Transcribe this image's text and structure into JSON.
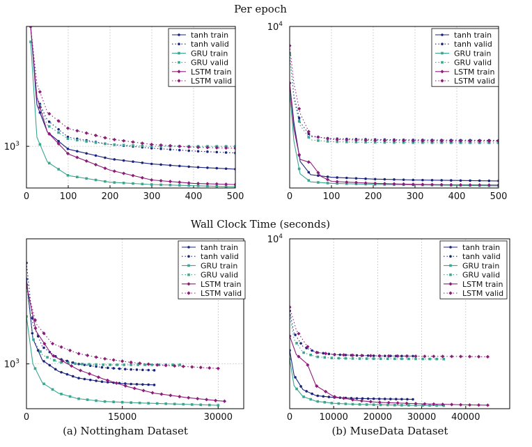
{
  "headings": {
    "top": "Per epoch",
    "middle": "Wall Clock Time (seconds)",
    "caption_a": "(a) Nottingham Dataset",
    "caption_b": "(b) MuseData Dataset"
  },
  "colors": {
    "tanh": "#1a237e",
    "gru": "#3aa68f",
    "lstm": "#8e1b7a"
  },
  "legend": [
    {
      "name": "tanh train",
      "family": "tanh",
      "style": "solid"
    },
    {
      "name": "tanh valid",
      "family": "tanh",
      "style": "dotted"
    },
    {
      "name": "GRU train",
      "family": "gru",
      "style": "solid"
    },
    {
      "name": "GRU valid",
      "family": "gru",
      "style": "dotted"
    },
    {
      "name": "LSTM train",
      "family": "lstm",
      "style": "solid"
    },
    {
      "name": "LSTM valid",
      "family": "lstm",
      "style": "dotted"
    }
  ],
  "chart_data": [
    {
      "type": "line",
      "id": "nottingham-epoch",
      "scale_y": "log",
      "grid": true,
      "legend": "top-right",
      "xlim": [
        0,
        500
      ],
      "ylim": [
        800,
        1900
      ],
      "xticks": [
        0,
        100,
        200,
        300,
        400,
        500
      ],
      "yticks": [
        {
          "value": 1000,
          "base": "10",
          "exp": "3"
        }
      ],
      "series": [
        {
          "name": "tanh train",
          "x": [
            10,
            25,
            50,
            100,
            200,
            300,
            400,
            500
          ],
          "y": [
            1900,
            1250,
            1080,
            985,
            935,
            910,
            895,
            885
          ]
        },
        {
          "name": "tanh valid",
          "x": [
            10,
            25,
            50,
            100,
            200,
            300,
            400,
            500
          ],
          "y": [
            1900,
            1300,
            1150,
            1050,
            1010,
            990,
            975,
            965
          ]
        },
        {
          "name": "GRU train",
          "x": [
            10,
            25,
            50,
            100,
            200,
            300,
            400,
            500
          ],
          "y": [
            1750,
            1050,
            920,
            855,
            825,
            815,
            810,
            805
          ]
        },
        {
          "name": "GRU valid",
          "x": [
            10,
            25,
            50,
            100,
            200,
            300,
            400,
            500
          ],
          "y": [
            1900,
            1300,
            1120,
            1040,
            1010,
            1000,
            1000,
            1000
          ]
        },
        {
          "name": "LSTM train",
          "x": [
            10,
            25,
            50,
            100,
            200,
            300,
            400,
            500
          ],
          "y": [
            1900,
            1300,
            1080,
            960,
            880,
            835,
            820,
            815
          ]
        },
        {
          "name": "LSTM valid",
          "x": [
            10,
            25,
            50,
            100,
            200,
            300,
            400,
            500
          ],
          "y": [
            1900,
            1400,
            1200,
            1100,
            1040,
            1010,
            995,
            990
          ]
        }
      ]
    },
    {
      "type": "line",
      "id": "musedata-epoch",
      "scale_y": "log",
      "grid": true,
      "legend": "top-right",
      "xlim": [
        0,
        500
      ],
      "ylim": [
        500,
        10000
      ],
      "xticks": [
        0,
        100,
        200,
        300,
        400,
        500
      ],
      "yticks": [
        {
          "value": 10000,
          "base": "10",
          "exp": "4"
        }
      ],
      "series": [
        {
          "name": "tanh train",
          "x": [
            0,
            10,
            25,
            50,
            100,
            200,
            300,
            400,
            500
          ],
          "y": [
            3500,
            1700,
            820,
            640,
            610,
            590,
            580,
            575,
            570
          ]
        },
        {
          "name": "tanh valid",
          "x": [
            0,
            10,
            25,
            50,
            100,
            200,
            300,
            400,
            500
          ],
          "y": [
            6000,
            2800,
            1700,
            1300,
            1250,
            1230,
            1220,
            1215,
            1210
          ]
        },
        {
          "name": "GRU train",
          "x": [
            0,
            10,
            25,
            50,
            100,
            200,
            300,
            400,
            500
          ],
          "y": [
            3000,
            1200,
            650,
            560,
            545,
            535,
            530,
            525,
            520
          ]
        },
        {
          "name": "GRU valid",
          "x": [
            0,
            10,
            25,
            50,
            100,
            200,
            300,
            400,
            500
          ],
          "y": [
            6000,
            2600,
            1600,
            1220,
            1180,
            1165,
            1160,
            1158,
            1155
          ]
        },
        {
          "name": "LSTM train",
          "x": [
            0,
            10,
            25,
            50,
            75,
            100,
            200,
            300,
            400,
            500
          ],
          "y": [
            3500,
            1500,
            850,
            800,
            620,
            565,
            545,
            535,
            530,
            528
          ]
        },
        {
          "name": "LSTM valid",
          "x": [
            0,
            10,
            25,
            50,
            100,
            200,
            300,
            400,
            500
          ],
          "y": [
            7000,
            3500,
            2000,
            1320,
            1230,
            1210,
            1200,
            1195,
            1190
          ]
        }
      ]
    },
    {
      "type": "line",
      "id": "nottingham-time",
      "scale_y": "log",
      "grid": true,
      "legend": "top-right",
      "xlim": [
        0,
        34000
      ],
      "ylim": [
        780,
        2000
      ],
      "xticks": [
        0,
        15000,
        30000
      ],
      "yticks": [
        {
          "value": 1000,
          "base": "10",
          "exp": "3"
        }
      ],
      "series": [
        {
          "name": "tanh train",
          "x": [
            0,
            1000,
            2500,
            5000,
            8000,
            12000,
            16000,
            20000
          ],
          "y": [
            1600,
            1150,
            1020,
            960,
            925,
            905,
            895,
            890
          ]
        },
        {
          "name": "tanh valid",
          "x": [
            0,
            1000,
            2500,
            5000,
            8000,
            12000,
            16000,
            20000
          ],
          "y": [
            1750,
            1250,
            1100,
            1030,
            1000,
            980,
            970,
            965
          ]
        },
        {
          "name": "GRU train",
          "x": [
            0,
            1000,
            2500,
            5000,
            8000,
            12000,
            18000,
            24000,
            30000
          ],
          "y": [
            1300,
            1000,
            900,
            850,
            825,
            812,
            805,
            800,
            795
          ]
        },
        {
          "name": "GRU valid",
          "x": [
            0,
            1000,
            2500,
            5000,
            8000,
            12000,
            18000,
            24000
          ],
          "y": [
            1550,
            1150,
            1050,
            1010,
            1000,
            995,
            995,
            995
          ]
        },
        {
          "name": "LSTM train",
          "x": [
            0,
            1500,
            4000,
            8000,
            12000,
            16000,
            20000,
            25000,
            30000,
            31000
          ],
          "y": [
            1550,
            1200,
            1050,
            970,
            920,
            880,
            850,
            830,
            815,
            813
          ]
        },
        {
          "name": "LSTM valid",
          "x": [
            0,
            1500,
            4000,
            8000,
            12000,
            16000,
            20000,
            25000,
            30000
          ],
          "y": [
            1550,
            1250,
            1120,
            1060,
            1030,
            1010,
            995,
            985,
            975
          ]
        }
      ]
    },
    {
      "type": "line",
      "id": "musedata-time",
      "scale_y": "log",
      "grid": true,
      "legend": "top-right",
      "xlim": [
        0,
        50000
      ],
      "ylim": [
        500,
        10000
      ],
      "xticks": [
        0,
        10000,
        20000,
        30000,
        40000
      ],
      "yticks": [
        {
          "value": 10000,
          "base": "10",
          "exp": "4"
        }
      ],
      "series": [
        {
          "name": "tanh train",
          "x": [
            0,
            1000,
            3000,
            6000,
            10000,
            15000,
            20000,
            28000
          ],
          "y": [
            1400,
            900,
            700,
            630,
            610,
            600,
            595,
            590
          ]
        },
        {
          "name": "tanh valid",
          "x": [
            0,
            1000,
            3000,
            6000,
            10000,
            15000,
            20000,
            28000
          ],
          "y": [
            2800,
            1900,
            1500,
            1350,
            1300,
            1280,
            1270,
            1265
          ]
        },
        {
          "name": "GRU train",
          "x": [
            0,
            1000,
            3000,
            6000,
            10000,
            15000,
            25000,
            35000
          ],
          "y": [
            1200,
            750,
            620,
            570,
            550,
            540,
            532,
            528
          ]
        },
        {
          "name": "GRU valid",
          "x": [
            0,
            1000,
            3000,
            6000,
            10000,
            15000,
            25000,
            35000
          ],
          "y": [
            2600,
            1700,
            1350,
            1250,
            1220,
            1210,
            1205,
            1200
          ]
        },
        {
          "name": "LSTM train",
          "x": [
            0,
            1500,
            4000,
            6000,
            10000,
            15000,
            20000,
            30000,
            40000,
            45000
          ],
          "y": [
            1800,
            1300,
            1100,
            750,
            620,
            580,
            560,
            545,
            535,
            532
          ]
        },
        {
          "name": "LSTM valid",
          "x": [
            0,
            1500,
            4000,
            6000,
            10000,
            15000,
            20000,
            30000,
            40000,
            45000
          ],
          "y": [
            3000,
            2000,
            1500,
            1350,
            1300,
            1280,
            1270,
            1260,
            1255,
            1250
          ]
        }
      ]
    }
  ]
}
